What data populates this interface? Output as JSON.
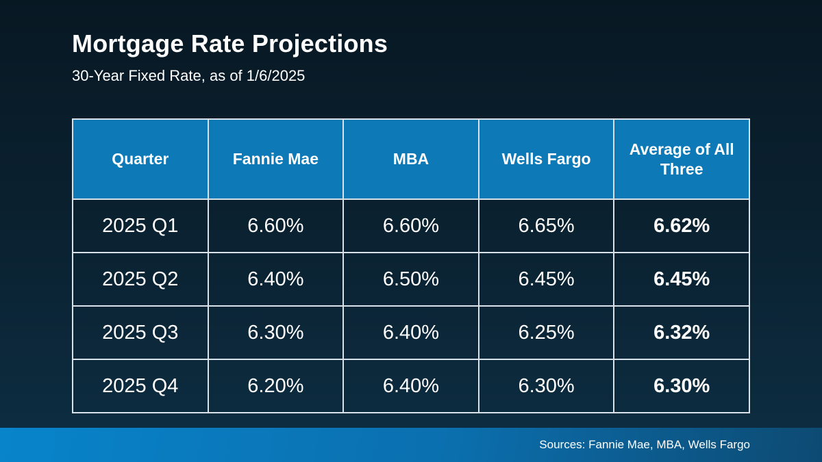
{
  "slide": {
    "title": "Mortgage Rate Projections",
    "subtitle": "30-Year Fixed Rate, as of 1/6/2025"
  },
  "chart_data": {
    "type": "table",
    "title": "Mortgage Rate Projections",
    "subtitle": "30-Year Fixed Rate, as of 1/6/2025",
    "columns": [
      "Quarter",
      "Fannie Mae",
      "MBA",
      "Wells Fargo",
      "Average of All Three"
    ],
    "rows": [
      [
        "2025 Q1",
        "6.60%",
        "6.60%",
        "6.65%",
        "6.62%"
      ],
      [
        "2025 Q2",
        "6.40%",
        "6.50%",
        "6.45%",
        "6.45%"
      ],
      [
        "2025 Q3",
        "6.30%",
        "6.40%",
        "6.25%",
        "6.32%"
      ],
      [
        "2025 Q4",
        "6.20%",
        "6.40%",
        "6.30%",
        "6.30%"
      ]
    ],
    "emphasis": "last column bold (average values)",
    "source_note": "Sources: Fannie Mae, MBA, Wells Fargo"
  },
  "footer": {
    "sources": "Sources: Fannie Mae, MBA, Wells Fargo"
  },
  "colors": {
    "background_top": "#081823",
    "background_bottom": "#0d2c40",
    "table_header_bg": "#0d79b6",
    "table_border": "#d9e2e8",
    "footer_gradient_start": "#0884cb",
    "footer_gradient_end": "#0d4a72",
    "text": "#ffffff"
  }
}
